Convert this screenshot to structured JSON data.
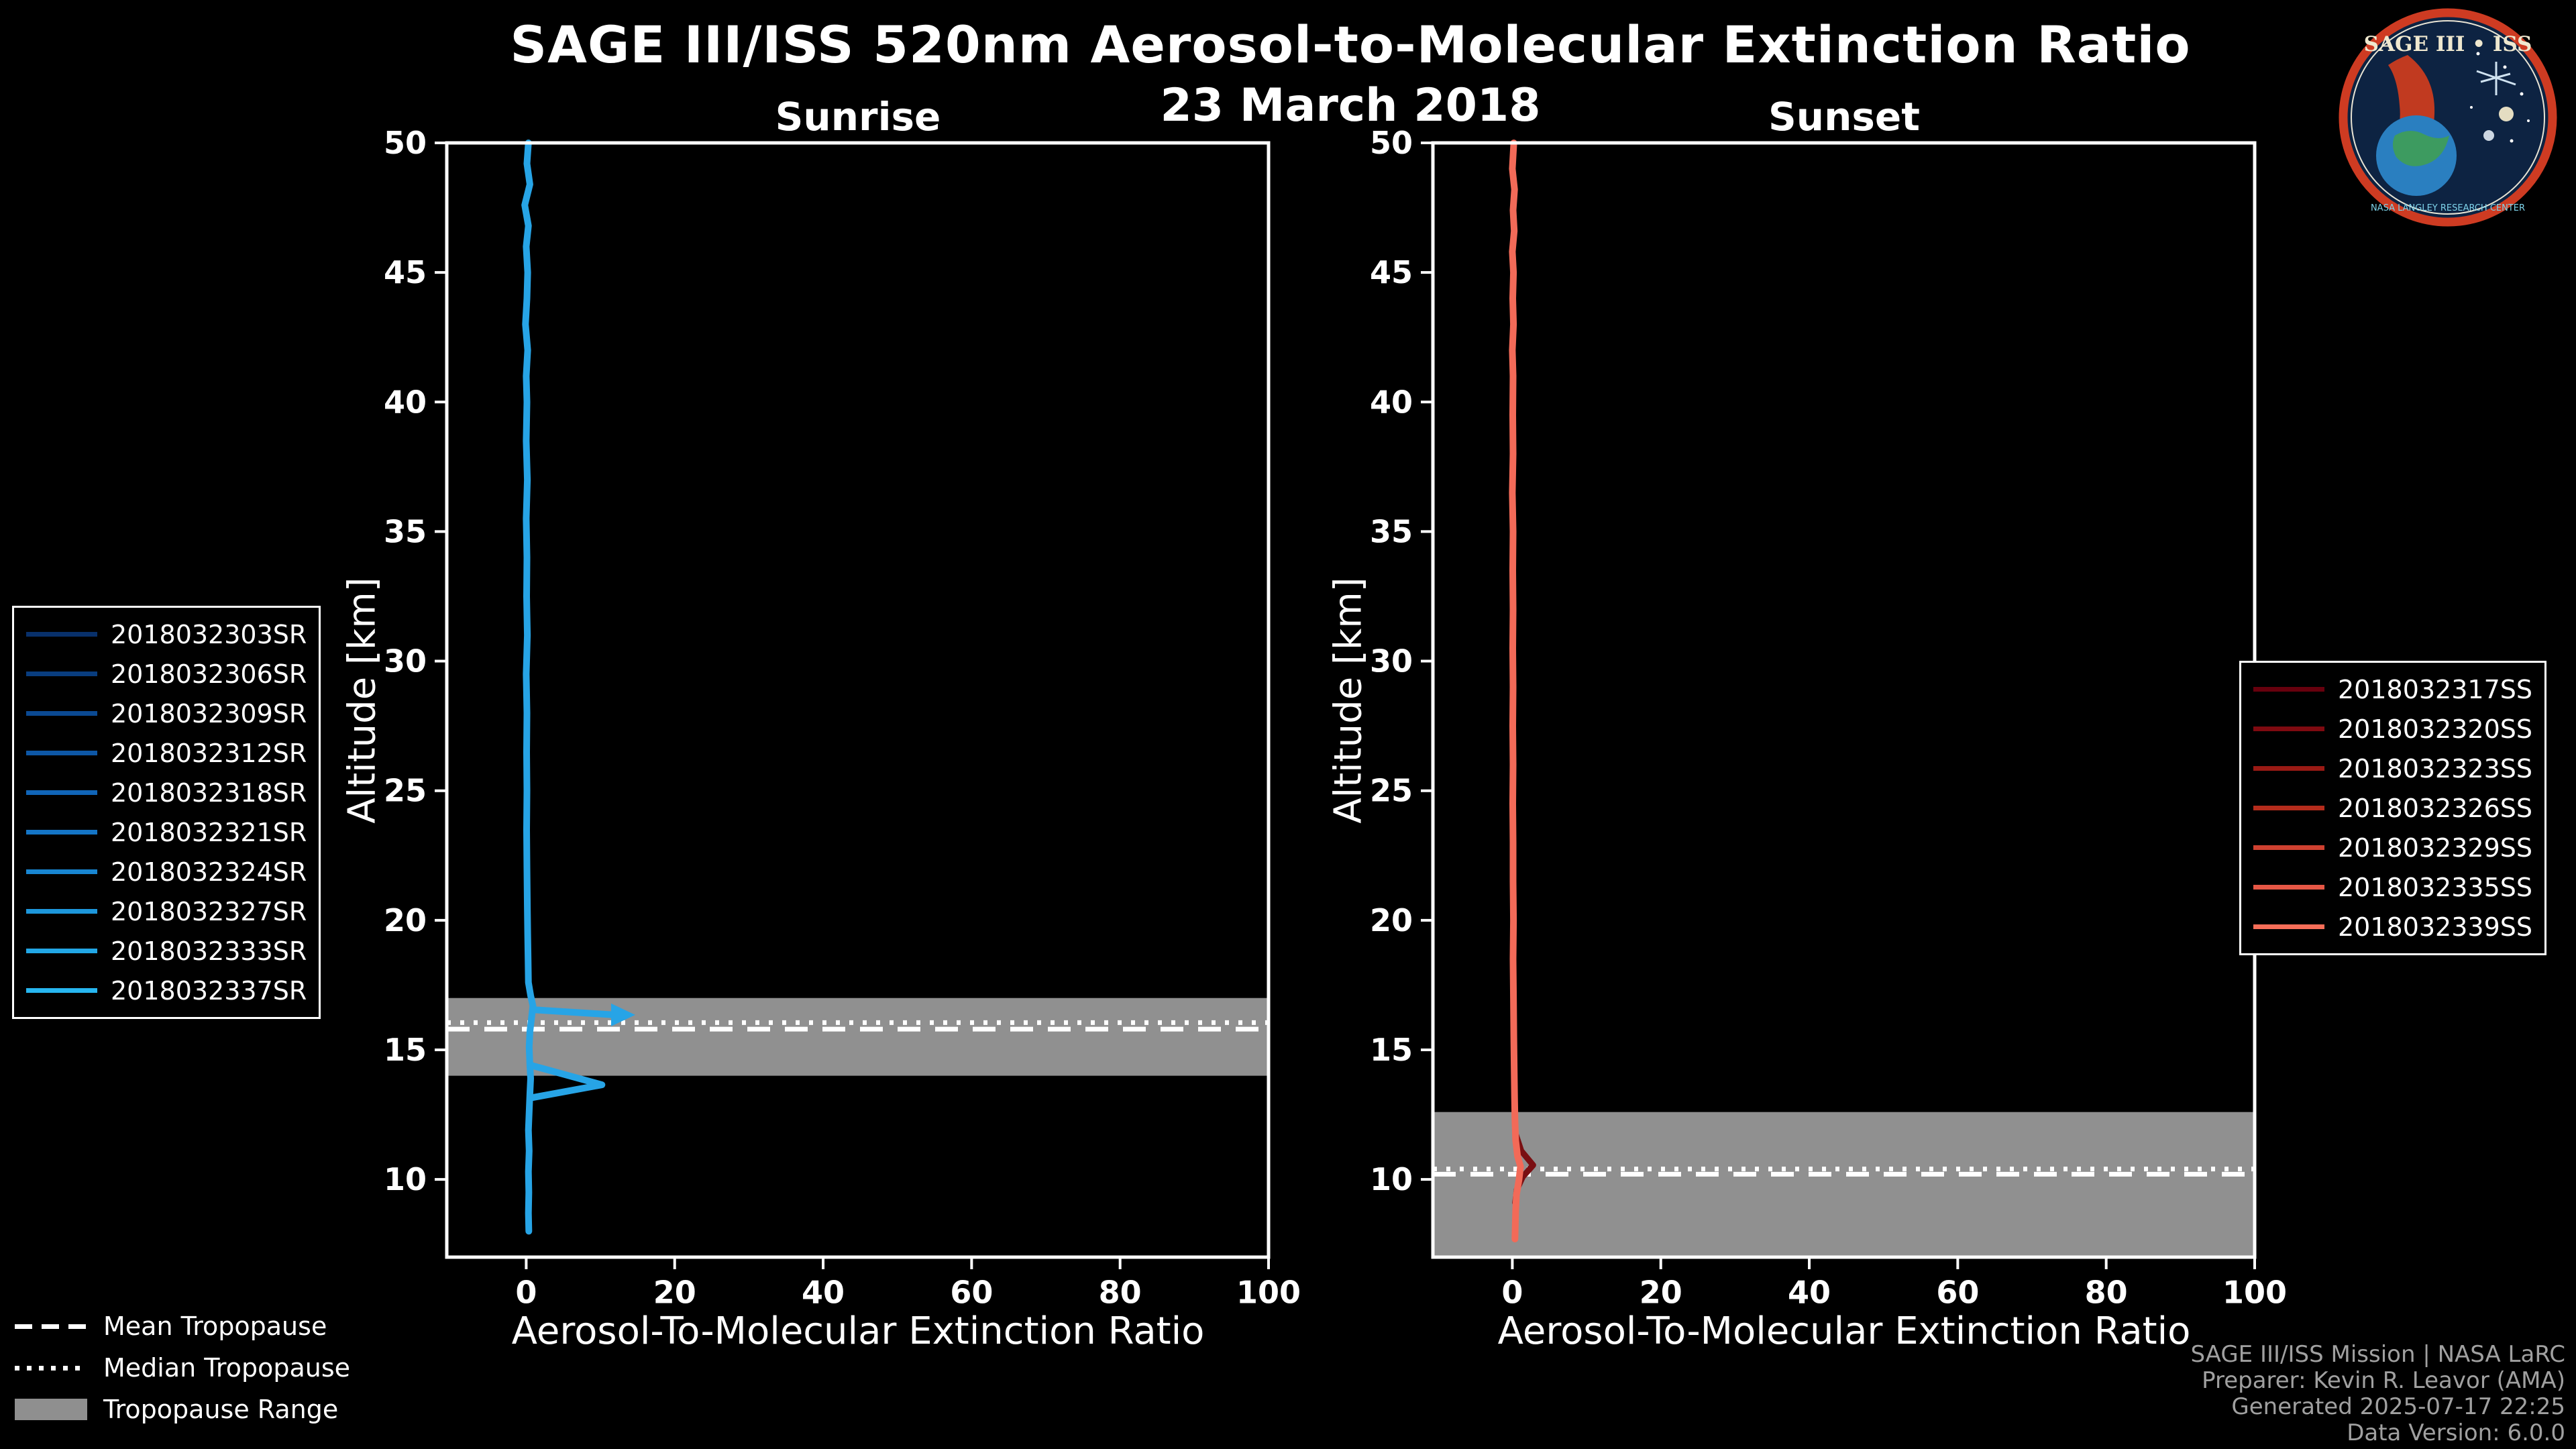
{
  "header": {
    "title": "SAGE III/ISS 520nm Aerosol-to-Molecular Extinction Ratio",
    "date": "23 March 2018"
  },
  "chart_data": [
    {
      "type": "line",
      "title": "Sunrise",
      "xlabel": "Aerosol-To-Molecular Extinction Ratio",
      "ylabel": "Altitude [km]",
      "xlim": [
        -10.7,
        100
      ],
      "ylim": [
        7,
        50
      ],
      "xticks": [
        0,
        20,
        40,
        60,
        80,
        100
      ],
      "yticks": [
        10,
        15,
        20,
        25,
        30,
        35,
        40,
        45,
        50
      ],
      "grid": false,
      "legend_position": "outside-left",
      "tropopause": {
        "range_km": [
          14.0,
          17.0
        ],
        "mean_km": 15.8,
        "median_km": 16.05
      },
      "series": [
        {
          "name": "sunrise-profile",
          "color": "#27a4e6",
          "width": 10,
          "points": [
            [
              0.3,
              50
            ],
            [
              0.1,
              49.2
            ],
            [
              0.5,
              48.4
            ],
            [
              -0.2,
              47.6
            ],
            [
              0.3,
              46.8
            ],
            [
              0.0,
              46.0
            ],
            [
              0.2,
              45.0
            ],
            [
              0.1,
              44.0
            ],
            [
              -0.1,
              43.0
            ],
            [
              0.2,
              42.0
            ],
            [
              0.0,
              41.0
            ],
            [
              0.1,
              40.0
            ],
            [
              0.0,
              38.5
            ],
            [
              0.15,
              37.0
            ],
            [
              0.0,
              35.5
            ],
            [
              0.1,
              34.0
            ],
            [
              0.05,
              32.5
            ],
            [
              0.15,
              31.0
            ],
            [
              0.0,
              29.5
            ],
            [
              0.1,
              28.0
            ],
            [
              0.05,
              26.5
            ],
            [
              0.1,
              25.0
            ],
            [
              0.05,
              23.5
            ],
            [
              0.1,
              22.0
            ],
            [
              0.15,
              20.5
            ],
            [
              0.2,
              19.5
            ],
            [
              0.25,
              18.5
            ],
            [
              0.3,
              17.6
            ],
            [
              0.6,
              17.1
            ],
            [
              0.9,
              16.7
            ],
            [
              0.7,
              16.2
            ],
            [
              0.5,
              15.7
            ],
            [
              0.4,
              15.1
            ],
            [
              0.5,
              14.4
            ],
            [
              0.6,
              13.9
            ],
            [
              0.5,
              13.3
            ],
            [
              0.4,
              12.6
            ],
            [
              0.3,
              11.9
            ],
            [
              0.4,
              11.1
            ],
            [
              0.3,
              10.3
            ],
            [
              0.35,
              9.5
            ],
            [
              0.3,
              8.7
            ],
            [
              0.35,
              8.0
            ]
          ]
        },
        {
          "name": "sunrise-spike-arrow",
          "color": "#27a4e6",
          "width": 10,
          "arrow_end": true,
          "points": [
            [
              0.9,
              16.55
            ],
            [
              11.8,
              16.35
            ]
          ]
        },
        {
          "name": "sunrise-spike-chevron",
          "color": "#27a4e6",
          "width": 10,
          "points": [
            [
              0.7,
              14.4
            ],
            [
              10.2,
              13.65
            ],
            [
              0.7,
              13.15
            ]
          ]
        }
      ],
      "legend_entries": [
        {
          "label": "2018032303SR",
          "color": "#08306b"
        },
        {
          "label": "2018032306SR",
          "color": "#093d7f"
        },
        {
          "label": "2018032309SR",
          "color": "#0b4a93"
        },
        {
          "label": "2018032312SR",
          "color": "#0d57a6"
        },
        {
          "label": "2018032318SR",
          "color": "#1065b8"
        },
        {
          "label": "2018032321SR",
          "color": "#1475c6"
        },
        {
          "label": "2018032324SR",
          "color": "#1886d2"
        },
        {
          "label": "2018032327SR",
          "color": "#1d97dc"
        },
        {
          "label": "2018032333SR",
          "color": "#22a7e6"
        },
        {
          "label": "2018032337SR",
          "color": "#27b6f0"
        }
      ]
    },
    {
      "type": "line",
      "title": "Sunset",
      "xlabel": "Aerosol-To-Molecular Extinction Ratio",
      "ylabel": "Altitude [km]",
      "xlim": [
        -10.7,
        100
      ],
      "ylim": [
        7,
        50
      ],
      "xticks": [
        0,
        20,
        40,
        60,
        80,
        100
      ],
      "yticks": [
        10,
        15,
        20,
        25,
        30,
        35,
        40,
        45,
        50
      ],
      "grid": false,
      "legend_position": "outside-right",
      "tropopause": {
        "range_km": [
          7.0,
          12.6
        ],
        "mean_km": 10.2,
        "median_km": 10.4
      },
      "series": [
        {
          "name": "sunset-profile-dark",
          "color": "#7a0f12",
          "width": 9,
          "points": [
            [
              0.4,
              11.8
            ],
            [
              1.2,
              11.1
            ],
            [
              2.8,
              10.55
            ],
            [
              1.4,
              10.1
            ],
            [
              0.6,
              9.6
            ],
            [
              0.4,
              9.1
            ]
          ]
        },
        {
          "name": "sunset-profile",
          "color": "#f26a58",
          "width": 10,
          "points": [
            [
              0.2,
              50
            ],
            [
              0.0,
              49.0
            ],
            [
              0.3,
              48.2
            ],
            [
              0.1,
              47.4
            ],
            [
              0.25,
              46.6
            ],
            [
              0.0,
              45.8
            ],
            [
              0.15,
              45.0
            ],
            [
              0.05,
              44.0
            ],
            [
              0.15,
              43.0
            ],
            [
              0.0,
              42.0
            ],
            [
              0.1,
              41.0
            ],
            [
              0.05,
              39.5
            ],
            [
              0.1,
              38.0
            ],
            [
              0.0,
              36.5
            ],
            [
              0.1,
              35.0
            ],
            [
              0.05,
              33.5
            ],
            [
              0.1,
              32.0
            ],
            [
              0.05,
              30.5
            ],
            [
              0.1,
              29.0
            ],
            [
              0.05,
              27.5
            ],
            [
              0.1,
              26.0
            ],
            [
              0.05,
              24.5
            ],
            [
              0.1,
              23.0
            ],
            [
              0.1,
              21.5
            ],
            [
              0.15,
              20.0
            ],
            [
              0.1,
              18.5
            ],
            [
              0.15,
              17.0
            ],
            [
              0.2,
              15.5
            ],
            [
              0.25,
              14.2
            ],
            [
              0.3,
              13.2
            ],
            [
              0.35,
              12.3
            ],
            [
              0.45,
              11.5
            ],
            [
              0.7,
              10.9
            ],
            [
              1.1,
              10.5
            ],
            [
              0.9,
              10.0
            ],
            [
              0.55,
              9.4
            ],
            [
              0.45,
              8.8
            ],
            [
              0.4,
              8.2
            ],
            [
              0.35,
              7.7
            ]
          ]
        }
      ],
      "legend_entries": [
        {
          "label": "2018032317SS",
          "color": "#67000d"
        },
        {
          "label": "2018032320SS",
          "color": "#7f0a10"
        },
        {
          "label": "2018032323SS",
          "color": "#9a1a14"
        },
        {
          "label": "2018032326SS",
          "color": "#b52c1c"
        },
        {
          "label": "2018032329SS",
          "color": "#cf4130"
        },
        {
          "label": "2018032335SS",
          "color": "#e65745"
        },
        {
          "label": "2018032339SS",
          "color": "#f76e58"
        }
      ]
    }
  ],
  "tropopause_legend": {
    "mean": "Mean Tropopause",
    "median": "Median Tropopause",
    "range": "Tropopause Range"
  },
  "credits": [
    "SAGE III/ISS Mission | NASA LaRC",
    "Preparer: Kevin R. Leavor (AMA)",
    "Generated 2025-07-17 22:25",
    "Data Version: 6.0.0"
  ],
  "logo": {
    "title": "SAGE III • ISS",
    "footer": "NASA LANGLEY RESEARCH CENTER"
  }
}
